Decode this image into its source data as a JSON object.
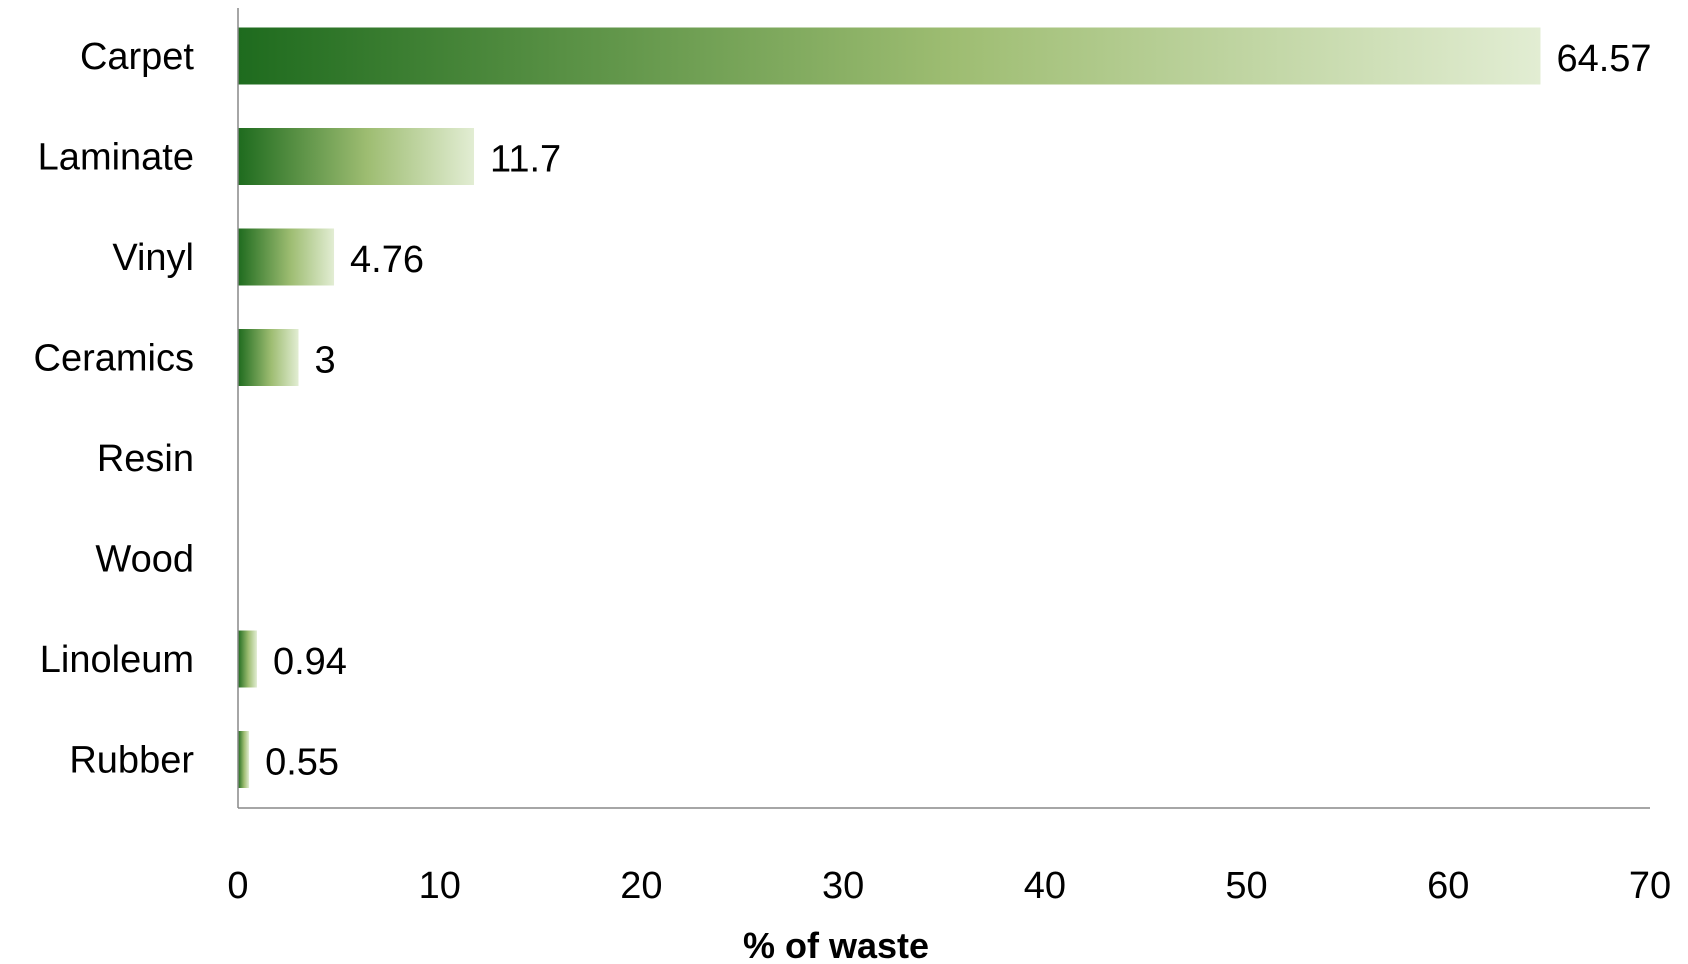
{
  "chart_data": {
    "type": "bar",
    "orientation": "horizontal",
    "categories": [
      "Carpet",
      "Laminate",
      "Vinyl",
      "Ceramics",
      "Resin",
      "Wood",
      "Linoleum",
      "Rubber"
    ],
    "values": [
      64.57,
      11.7,
      4.76,
      3,
      null,
      null,
      0.94,
      0.55
    ],
    "value_labels": [
      "64.57",
      "11.7",
      "4.76",
      "3",
      "",
      "",
      "0.94",
      "0.55"
    ],
    "xlabel": "% of waste",
    "ylabel": "",
    "xlim": [
      0,
      70
    ],
    "xticks": [
      0,
      10,
      20,
      30,
      40,
      50,
      60,
      70
    ],
    "grid": false,
    "legend": "none",
    "colors": {
      "bar_start": "#1e6b1e",
      "bar_mid": "#9ebd72",
      "bar_end": "#e2edd3",
      "axis": "#888888"
    }
  }
}
